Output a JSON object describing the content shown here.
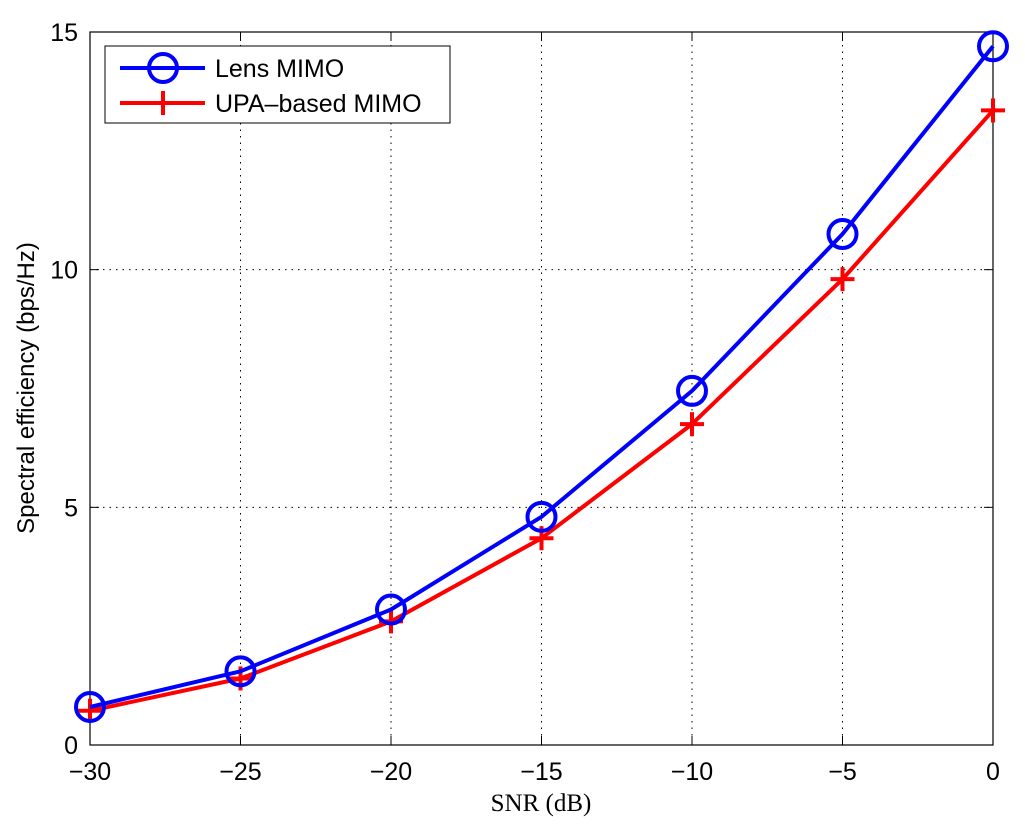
{
  "chart_data": {
    "type": "line",
    "xlabel": "SNR (dB)",
    "ylabel": "Spectral efficiency (bps/Hz)",
    "xlim": [
      -30,
      0
    ],
    "ylim": [
      0,
      15
    ],
    "xticks": [
      -30,
      -25,
      -20,
      -15,
      -10,
      -5,
      0
    ],
    "yticks": [
      0,
      5,
      10,
      15
    ],
    "xtick_labels": [
      "−30",
      "−25",
      "−20",
      "−15",
      "−10",
      "−5",
      "0"
    ],
    "ytick_labels": [
      "0",
      "5",
      "10",
      "15"
    ],
    "grid": true,
    "legend_position": "top-left",
    "x": [
      -30,
      -25,
      -20,
      -15,
      -10,
      -5,
      0
    ],
    "series": [
      {
        "name": "Lens MIMO",
        "color": "#0000ff",
        "marker": "circle",
        "values": [
          0.8,
          1.55,
          2.85,
          4.8,
          7.45,
          10.75,
          14.7
        ]
      },
      {
        "name": "UPA–based MIMO",
        "color": "#ff0000",
        "marker": "plus",
        "values": [
          0.72,
          1.4,
          2.6,
          4.35,
          6.75,
          9.8,
          13.35
        ]
      }
    ]
  }
}
